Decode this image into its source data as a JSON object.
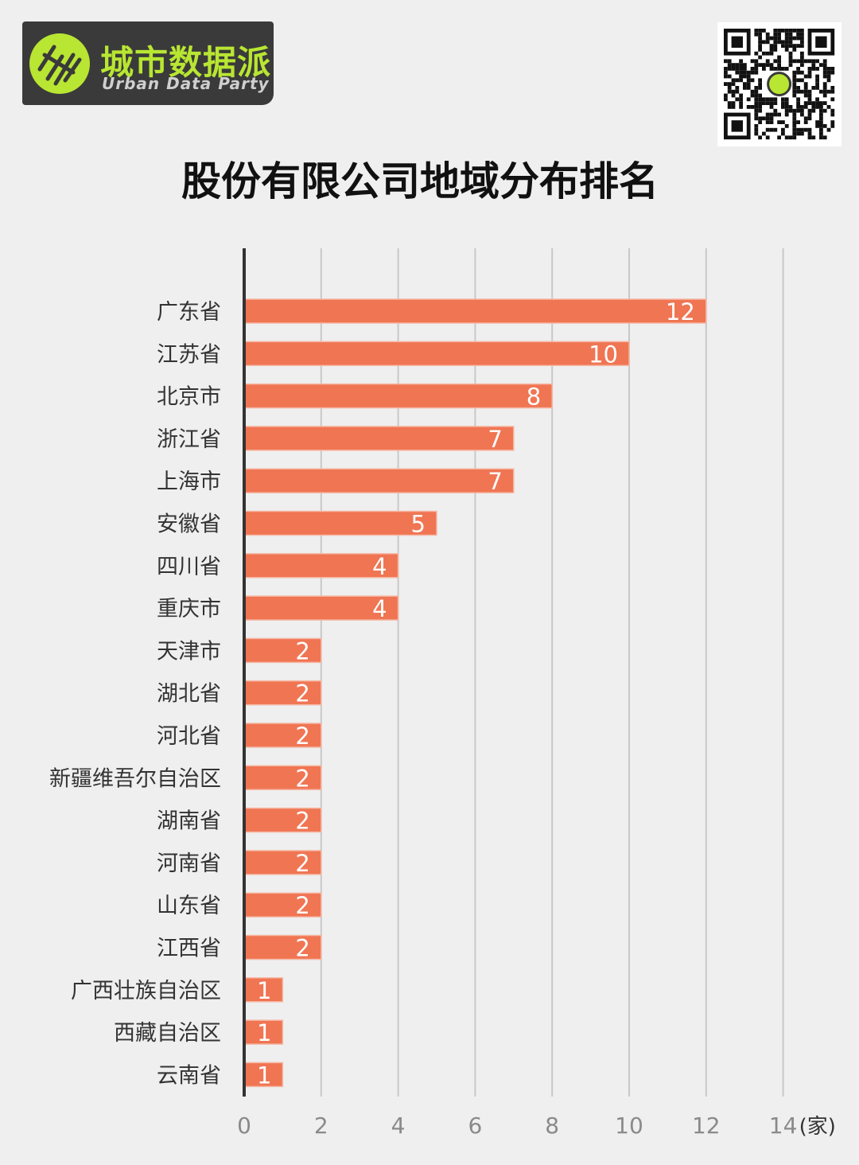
{
  "brand": {
    "name_cn": "城市数据派",
    "name_en": "Urban Data Party"
  },
  "colors": {
    "background": "#efefef",
    "bar": "#f07553",
    "bar_edge": "#f6b7a3",
    "grid": "#c8c8c8",
    "axis": "#333333",
    "logo_bg": "#3a3a3a",
    "logo_accent": "#b8e632"
  },
  "chart_data": {
    "type": "bar",
    "orientation": "horizontal",
    "title": "股份有限公司地域分布排名",
    "unit_label": "(家)",
    "categories": [
      "广东省",
      "江苏省",
      "北京市",
      "浙江省",
      "上海市",
      "安徽省",
      "四川省",
      "重庆市",
      "天津市",
      "湖北省",
      "河北省",
      "新疆维吾尔自治区",
      "湖南省",
      "河南省",
      "山东省",
      "江西省",
      "广西壮族自治区",
      "西藏自治区",
      "云南省"
    ],
    "values": [
      12,
      10,
      8,
      7,
      7,
      5,
      4,
      4,
      2,
      2,
      2,
      2,
      2,
      2,
      2,
      2,
      1,
      1,
      1
    ],
    "xlim": [
      0,
      14
    ],
    "xticks": [
      0,
      2,
      4,
      6,
      8,
      10,
      12,
      14
    ],
    "grid": true
  }
}
